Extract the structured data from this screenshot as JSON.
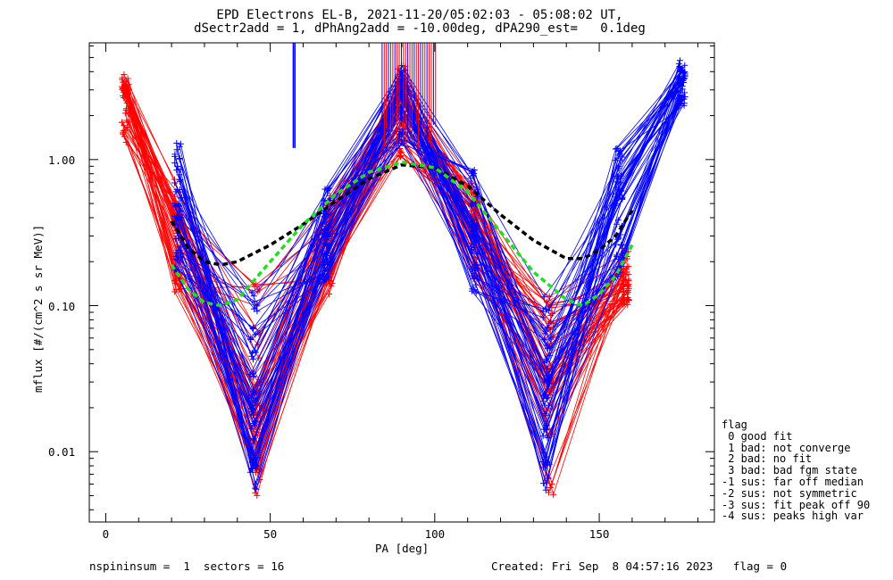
{
  "title": {
    "line1": "EPD Electrons EL-B, 2021-11-20/05:02:03 - 05:08:02 UT,",
    "line2": "dSectr2add = 1, dPhAng2add = -10.00deg, dPA290_est=   0.1deg"
  },
  "axes": {
    "xlabel": "PA [deg]",
    "ylabel": "mflux [#/(cm^2 s sr MeV)]",
    "x_ticks": [
      "0",
      "50",
      "100",
      "150"
    ],
    "y_ticks": [
      "0.01",
      "0.10",
      "1.00"
    ]
  },
  "legend": {
    "title": "flag",
    "items": [
      " 0 good fit",
      " 1 bad: not converge",
      " 2 bad: no fit",
      " 3 bad: bad fgm state",
      "-1 sus: far off median",
      "-2 sus: not symmetric",
      "-3 sus: fit peak off 90",
      "-4 sus: peaks high var"
    ]
  },
  "footer": {
    "left": "nspininsum =  1  sectors = 16",
    "right": "Created: Fri Sep  8 04:57:16 2023   flag = 0"
  },
  "colors": {
    "red_series": "#ff0000",
    "blue_series": "#0000ff",
    "fit_black": "#000000",
    "fit_green": "#22dd22"
  },
  "chart_data": {
    "type": "line",
    "x_scale": "linear",
    "y_scale": "log",
    "xlim": [
      -5,
      185
    ],
    "ylim": [
      0.0033,
      6.3
    ],
    "grid": false,
    "series": [
      {
        "color": "red",
        "x": [
          6,
          22,
          46,
          68,
          90,
          112,
          135,
          158
        ],
        "median": [
          3.0,
          0.35,
          0.02,
          0.3,
          2.8,
          0.4,
          0.03,
          0.15
        ],
        "spread_low": [
          1.3,
          0.12,
          0.005,
          0.12,
          1.0,
          0.15,
          0.005,
          0.1
        ],
        "spread_high": [
          4.0,
          0.8,
          0.16,
          0.6,
          4.5,
          0.7,
          0.12,
          0.25
        ]
      },
      {
        "color": "blue",
        "x": [
          22,
          45,
          67,
          90,
          112,
          134,
          156,
          175
        ],
        "median": [
          0.4,
          0.02,
          0.3,
          2.8,
          0.35,
          0.03,
          0.5,
          3.5
        ],
        "spread_low": [
          0.15,
          0.0055,
          0.15,
          1.2,
          0.12,
          0.005,
          0.15,
          2.3
        ],
        "spread_high": [
          1.45,
          0.15,
          0.65,
          4.5,
          0.9,
          0.12,
          1.2,
          4.8
        ]
      },
      {
        "name": "",
        "color": "black",
        "style": "dashed",
        "x": [
          20,
          25,
          30,
          35,
          40,
          50,
          60,
          70,
          80,
          90,
          100,
          110,
          120,
          130,
          140,
          145,
          150,
          155,
          160
        ],
        "y": [
          0.38,
          0.25,
          0.2,
          0.19,
          0.2,
          0.26,
          0.36,
          0.52,
          0.74,
          0.92,
          0.88,
          0.66,
          0.42,
          0.28,
          0.21,
          0.21,
          0.24,
          0.3,
          0.45
        ]
      },
      {
        "name": "",
        "color": "green",
        "style": "dashed",
        "x": [
          20,
          25,
          30,
          35,
          40,
          50,
          60,
          70,
          80,
          90,
          100,
          110,
          120,
          130,
          140,
          145,
          150,
          155,
          160
        ],
        "y": [
          0.19,
          0.13,
          0.105,
          0.1,
          0.11,
          0.2,
          0.36,
          0.58,
          0.82,
          0.96,
          0.88,
          0.6,
          0.32,
          0.17,
          0.11,
          0.1,
          0.12,
          0.16,
          0.26
        ]
      }
    ],
    "clipped_spikes": [
      {
        "x": 57,
        "y_bottom": 1.2,
        "color": "blue"
      },
      {
        "x": 57.5,
        "y_bottom": 1.2,
        "color": "blue"
      }
    ]
  }
}
